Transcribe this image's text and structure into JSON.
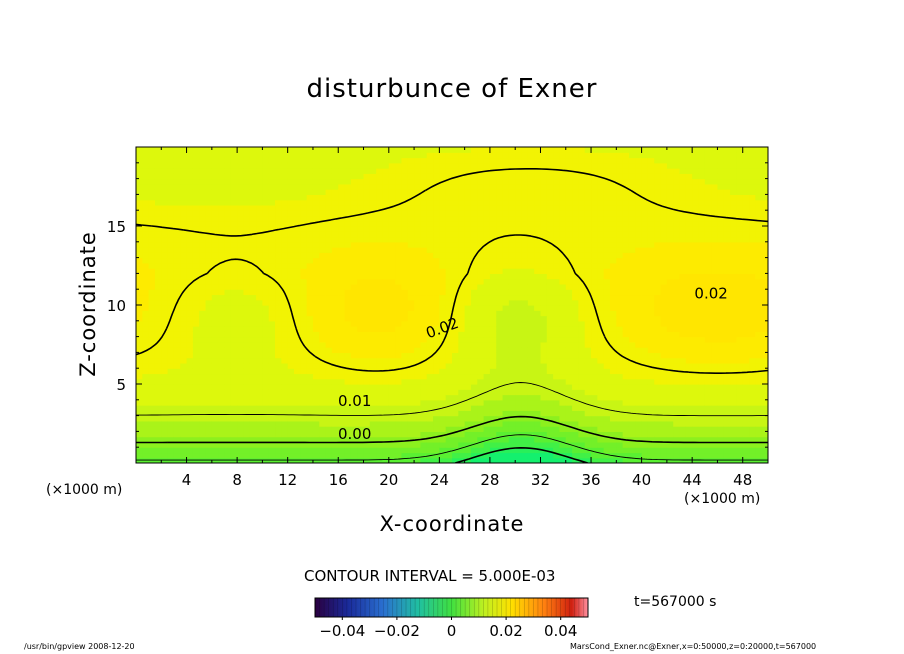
{
  "chart_data": {
    "type": "heatmap",
    "title": "disturbunce of Exner",
    "xlabel": "X-coordinate",
    "ylabel": "Z-coordinate",
    "x_unit_labels": [
      "(×1000 m)",
      "(×1000 m)"
    ],
    "xlim": [
      0,
      50
    ],
    "ylim": [
      0,
      20
    ],
    "x_ticks": [
      4,
      8,
      12,
      16,
      20,
      24,
      28,
      32,
      36,
      40,
      44,
      48
    ],
    "y_ticks": [
      5,
      10,
      15
    ],
    "contour_labels": [
      {
        "text": "0.02",
        "x": 45.5,
        "z": 10.8
      },
      {
        "text": "0.02",
        "x": 24.2,
        "z": 8.6
      },
      {
        "text": "0.01",
        "x": 17.3,
        "z": 4.0
      },
      {
        "text": "0.00",
        "x": 17.3,
        "z": 1.9
      }
    ],
    "contour_interval": "CONTOUR INTERVAL = 5.000E-03",
    "colorbar": {
      "min": -0.05,
      "max": 0.05,
      "tick_labels": [
        "−0.04",
        "−0.02",
        "0",
        "0.02",
        "0.04"
      ],
      "tick_values": [
        -0.04,
        -0.02,
        0,
        0.02,
        0.04
      ]
    },
    "time_label": "t=567000 s"
  },
  "footer": {
    "left": "/usr/bin/gpview   2008-12-20",
    "right": "MarsCond_Exner.nc@Exner,x=0:50000,z=0:20000,t=567000"
  }
}
